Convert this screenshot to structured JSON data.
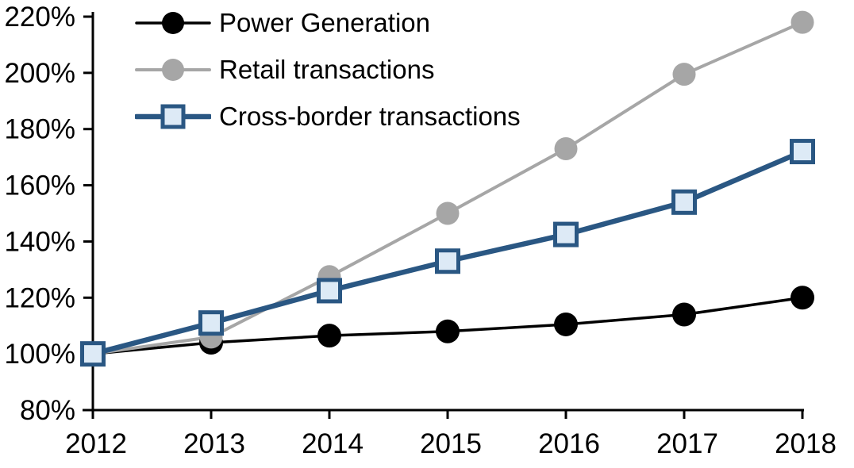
{
  "chart_data": {
    "type": "line",
    "title": "",
    "xlabel": "",
    "ylabel": "",
    "categories": [
      "2012",
      "2013",
      "2014",
      "2015",
      "2016",
      "2017",
      "2018"
    ],
    "series": [
      {
        "name": "Power Generation",
        "color": "#000000",
        "marker": "circle",
        "marker_fill": "#000000",
        "values": [
          100,
          104,
          106.5,
          108,
          110.5,
          114,
          120
        ]
      },
      {
        "name": "Retail transactions",
        "color": "#A6A6A6",
        "marker": "circle",
        "marker_fill": "#A6A6A6",
        "values": [
          100,
          106,
          127.5,
          150,
          173,
          199.5,
          218
        ]
      },
      {
        "name": "Cross-border transactions",
        "color": "#2A5783",
        "marker": "square",
        "marker_fill": "#DDEAF6",
        "values": [
          100,
          111,
          122.5,
          133,
          142.5,
          154,
          172
        ]
      }
    ],
    "ylim": [
      80,
      220
    ],
    "ytick_step": 20,
    "ytick_labels": [
      "80%",
      "100%",
      "120%",
      "140%",
      "160%",
      "180%",
      "200%",
      "220%"
    ],
    "grid": false,
    "legend_position": "top-left",
    "axis_color": "#000000",
    "background": "#FFFFFF"
  }
}
